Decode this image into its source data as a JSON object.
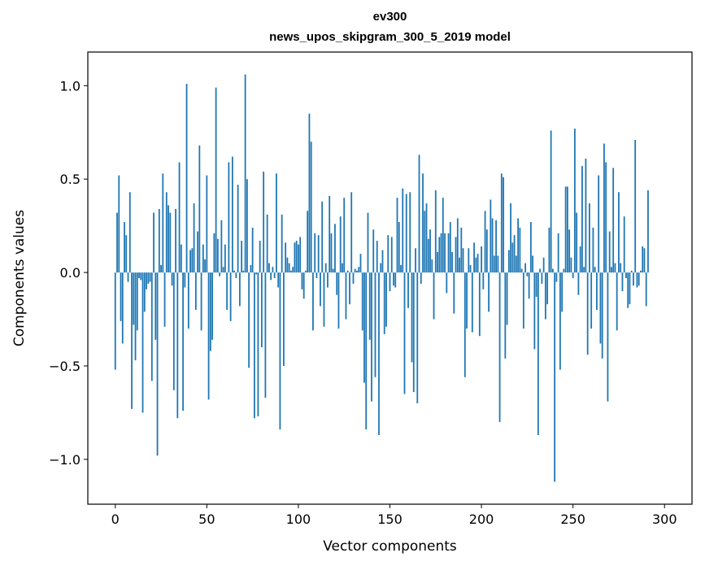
{
  "chart_data": {
    "type": "bar",
    "title_line1": "ev300",
    "title_line2": "news_upos_skipgram_300_5_2019 model",
    "xlabel": "Vector components",
    "ylabel": "Components values",
    "xlim": [
      -15,
      315
    ],
    "ylim": [
      -1.24,
      1.18
    ],
    "xticks": [
      0,
      50,
      100,
      150,
      200,
      250,
      300
    ],
    "xtick_labels": [
      "0",
      "50",
      "100",
      "150",
      "200",
      "250",
      "300"
    ],
    "yticks": [
      -1.0,
      -0.5,
      0.0,
      0.5,
      1.0
    ],
    "ytick_labels": [
      "−1.0",
      "−0.5",
      "0.0",
      "0.5",
      "1.0"
    ],
    "bar_color": "#1f77b4",
    "grid": false,
    "series": [
      {
        "name": "ev300",
        "values": [
          -0.52,
          0.32,
          0.52,
          -0.26,
          -0.38,
          0.27,
          0.2,
          -0.05,
          0.43,
          -0.73,
          -0.28,
          -0.47,
          -0.31,
          -0.03,
          -0.04,
          -0.75,
          -0.21,
          -0.09,
          -0.06,
          -0.05,
          -0.58,
          0.32,
          -0.36,
          -0.98,
          0.34,
          0.04,
          0.53,
          -0.29,
          0.43,
          0.36,
          0.32,
          -0.07,
          -0.63,
          0.34,
          -0.78,
          0.59,
          0.15,
          -0.74,
          -0.08,
          1.01,
          -0.3,
          0.12,
          0.13,
          0.37,
          -0.2,
          0.22,
          0.68,
          -0.31,
          0.15,
          0.07,
          0.52,
          -0.68,
          -0.42,
          -0.36,
          0.21,
          0.99,
          0.18,
          -0.02,
          0.28,
          0.03,
          0.15,
          -0.2,
          0.59,
          -0.26,
          0.62,
          0.01,
          -0.03,
          0.47,
          -0.18,
          0.17,
          0.01,
          1.06,
          0.5,
          -0.51,
          0.04,
          0.24,
          -0.78,
          -0.01,
          -0.77,
          0.17,
          -0.4,
          0.54,
          -0.67,
          0.31,
          0.05,
          -0.04,
          0.03,
          -0.03,
          0.53,
          -0.08,
          -0.84,
          0.31,
          -0.5,
          0.16,
          0.08,
          0.05,
          0.01,
          0.03,
          0.16,
          0.17,
          0.15,
          0.19,
          -0.09,
          -0.14,
          0.01,
          0.33,
          0.85,
          0.7,
          -0.31,
          0.21,
          -0.03,
          0.2,
          -0.18,
          0.38,
          -0.29,
          0.05,
          -0.08,
          0.41,
          0.21,
          0.02,
          0.26,
          -0.12,
          -0.3,
          0.3,
          0.05,
          0.4,
          -0.25,
          0.01,
          -0.17,
          0.43,
          -0.06,
          0.02,
          0.01,
          0.03,
          0.1,
          -0.31,
          -0.59,
          -0.84,
          0.32,
          -0.36,
          -0.69,
          0.23,
          -0.56,
          0.17,
          -0.87,
          0.05,
          0.12,
          -0.33,
          -0.29,
          0.2,
          -0.1,
          0.19,
          -0.07,
          -0.08,
          0.4,
          0.27,
          0.04,
          0.45,
          -0.65,
          0.42,
          -0.19,
          0.43,
          -0.48,
          -0.64,
          0.13,
          -0.7,
          0.63,
          -0.06,
          0.53,
          0.33,
          0.37,
          0.18,
          0.23,
          0.07,
          -0.25,
          0.44,
          0.11,
          0.19,
          0.21,
          0.4,
          0.21,
          -0.11,
          0.21,
          0.27,
          0.11,
          -0.22,
          0.19,
          0.29,
          0.08,
          0.24,
          0.13,
          -0.56,
          -0.3,
          0.13,
          0.04,
          -0.32,
          0.16,
          0.08,
          0.1,
          -0.34,
          0.14,
          -0.09,
          0.33,
          0.23,
          -0.21,
          0.39,
          0.29,
          0.09,
          0.28,
          0.09,
          -0.8,
          0.53,
          0.51,
          -0.46,
          -0.28,
          0.12,
          0.37,
          0.16,
          0.2,
          0.09,
          0.29,
          0.24,
          0.02,
          -0.3,
          0.05,
          -0.02,
          -0.14,
          0.27,
          0.09,
          -0.41,
          -0.13,
          -0.87,
          0.02,
          -0.06,
          0.08,
          -0.25,
          -0.17,
          0.24,
          0.76,
          0.02,
          -1.12,
          -0.05,
          0.21,
          -0.52,
          -0.21,
          0.02,
          0.46,
          0.46,
          0.23,
          0.08,
          -0.03,
          0.77,
          0.32,
          -0.12,
          0.14,
          0.57,
          0.03,
          0.61,
          -0.44,
          0.37,
          -0.3,
          0.24,
          0.03,
          -0.2,
          0.52,
          -0.38,
          -0.46,
          0.69,
          0.59,
          -0.69,
          0.22,
          0.03,
          0.56,
          0.05,
          -0.31,
          0.43,
          0.05,
          -0.1,
          0.3,
          -0.03,
          -0.19,
          -0.17,
          0.01,
          -0.07,
          0.71,
          -0.08,
          -0.07,
          0.01,
          0.14,
          0.13,
          -0.18,
          0.44
        ]
      }
    ]
  }
}
